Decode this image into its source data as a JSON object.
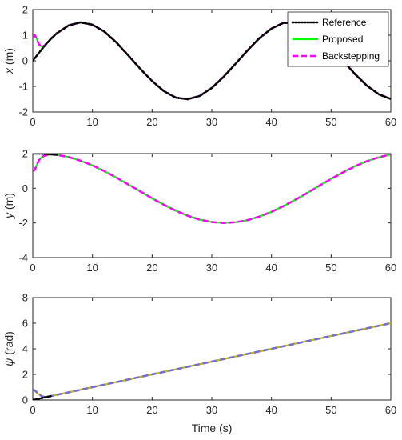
{
  "colors": {
    "reference": "#000000",
    "proposed": "#00ff00",
    "backstepping": "#ff00ff",
    "psi_proposed": "#c8b400",
    "psi_backstepping": "#6e6edc"
  },
  "chart_data": [
    {
      "type": "line",
      "ylabel_var": "x",
      "ylabel_unit": " (m)",
      "ylim": [
        -2,
        2
      ],
      "yticks": [
        "2",
        "1",
        "0",
        "-1",
        "-2"
      ],
      "xlim": [
        0,
        60
      ],
      "xticks": [
        "0",
        "10",
        "20",
        "30",
        "40",
        "50",
        "60"
      ],
      "legend_position": "top-right",
      "legend": [
        "Reference",
        "Proposed",
        "Backstepping"
      ],
      "series": [
        {
          "name": "Reference",
          "style": "dotted",
          "x": [
            0,
            1,
            2,
            3,
            4,
            6,
            8,
            10,
            12,
            14,
            16,
            18,
            20,
            22,
            24,
            26,
            28,
            30,
            32,
            34,
            36,
            38,
            40,
            42,
            44,
            46,
            48,
            50,
            52,
            54,
            56,
            58,
            60
          ],
          "y": [
            0,
            0.3,
            0.59,
            0.85,
            1.07,
            1.38,
            1.5,
            1.41,
            1.14,
            0.72,
            0.21,
            -0.31,
            -0.79,
            -1.19,
            -1.44,
            -1.5,
            -1.37,
            -1.06,
            -0.62,
            -0.11,
            0.41,
            0.89,
            1.26,
            1.48,
            1.49,
            1.31,
            0.97,
            0.52,
            0.0,
            -0.52,
            -0.97,
            -1.31,
            -1.49
          ]
        },
        {
          "name": "Proposed",
          "style": "solid",
          "x": [
            0,
            0.3,
            0.7,
            1.0,
            1.5,
            2,
            3,
            4,
            6,
            8,
            10,
            12,
            14,
            16,
            18,
            20,
            22,
            24,
            26,
            28,
            30,
            32,
            34,
            36,
            38,
            40,
            42,
            44,
            46,
            48,
            50,
            52,
            54,
            56,
            58,
            60
          ],
          "y": [
            0.95,
            1.0,
            0.85,
            0.65,
            0.55,
            0.6,
            0.85,
            1.07,
            1.38,
            1.5,
            1.41,
            1.14,
            0.72,
            0.21,
            -0.31,
            -0.79,
            -1.19,
            -1.44,
            -1.5,
            -1.37,
            -1.06,
            -0.62,
            -0.11,
            0.41,
            0.89,
            1.26,
            1.48,
            1.49,
            1.31,
            0.97,
            0.52,
            0.0,
            -0.52,
            -0.97,
            -1.31,
            -1.49
          ]
        },
        {
          "name": "Backstepping",
          "style": "dashed",
          "x": [
            0,
            0.3,
            0.7,
            1.0,
            1.5,
            2,
            3,
            4,
            6,
            8,
            10,
            12,
            14,
            16,
            18,
            20,
            22,
            24,
            26,
            28,
            30,
            32,
            34,
            36,
            38,
            40,
            42,
            44,
            46,
            48,
            50,
            52,
            54,
            56,
            58,
            60
          ],
          "y": [
            0.95,
            1.0,
            0.85,
            0.65,
            0.55,
            0.6,
            0.85,
            1.07,
            1.38,
            1.5,
            1.41,
            1.14,
            0.72,
            0.21,
            -0.31,
            -0.79,
            -1.19,
            -1.44,
            -1.5,
            -1.37,
            -1.06,
            -0.62,
            -0.11,
            0.41,
            0.89,
            1.26,
            1.48,
            1.49,
            1.31,
            0.97,
            0.52,
            0.0,
            -0.52,
            -0.97,
            -1.31,
            -1.49
          ]
        }
      ]
    },
    {
      "type": "line",
      "ylabel_var": "y",
      "ylabel_unit": " (m)",
      "ylim": [
        -4,
        2
      ],
      "yticks": [
        "2",
        "0",
        "-2",
        "-4"
      ],
      "xlim": [
        0,
        60
      ],
      "xticks": [
        "0",
        "10",
        "20",
        "30",
        "40",
        "50",
        "60"
      ],
      "series": [
        {
          "name": "Reference",
          "style": "dotted",
          "x": [
            0,
            1,
            2,
            3,
            4
          ],
          "y": [
            2.0,
            2.0,
            1.98,
            1.96,
            1.93
          ]
        },
        {
          "name": "Proposed",
          "style": "solid",
          "x": [
            0,
            0.3,
            0.7,
            1.0,
            1.5,
            2,
            3,
            4,
            6,
            8,
            10,
            12,
            14,
            16,
            18,
            20,
            22,
            24,
            26,
            28,
            30,
            32,
            34,
            36,
            38,
            40,
            42,
            44,
            46,
            48,
            50,
            52,
            54,
            56,
            58,
            60
          ],
          "y": [
            1.0,
            1.05,
            1.35,
            1.6,
            1.8,
            1.88,
            1.96,
            1.93,
            1.8,
            1.59,
            1.32,
            0.99,
            0.62,
            0.22,
            -0.18,
            -0.58,
            -0.96,
            -1.3,
            -1.59,
            -1.81,
            -1.95,
            -2.0,
            -1.96,
            -1.84,
            -1.63,
            -1.36,
            -1.03,
            -0.66,
            -0.27,
            0.14,
            0.54,
            0.92,
            1.27,
            1.56,
            1.79,
            1.95
          ]
        },
        {
          "name": "Backstepping",
          "style": "dashed",
          "x": [
            0,
            0.3,
            0.7,
            1.0,
            1.5,
            2,
            3,
            4,
            6,
            8,
            10,
            12,
            14,
            16,
            18,
            20,
            22,
            24,
            26,
            28,
            30,
            32,
            34,
            36,
            38,
            40,
            42,
            44,
            46,
            48,
            50,
            52,
            54,
            56,
            58,
            60
          ],
          "y": [
            1.0,
            1.05,
            1.35,
            1.6,
            1.8,
            1.88,
            1.96,
            1.93,
            1.8,
            1.59,
            1.32,
            0.99,
            0.62,
            0.22,
            -0.18,
            -0.58,
            -0.96,
            -1.3,
            -1.59,
            -1.81,
            -1.95,
            -2.0,
            -1.96,
            -1.84,
            -1.63,
            -1.36,
            -1.03,
            -0.66,
            -0.27,
            0.14,
            0.54,
            0.92,
            1.27,
            1.56,
            1.79,
            1.95
          ]
        }
      ]
    },
    {
      "type": "line",
      "ylabel_var": "ψ",
      "ylabel_unit": " (rad)",
      "ylim": [
        0,
        8
      ],
      "yticks": [
        "8",
        "6",
        "4",
        "2",
        "0"
      ],
      "xlim": [
        0,
        60
      ],
      "xticks": [
        "0",
        "10",
        "20",
        "30",
        "40",
        "50",
        "60"
      ],
      "xlabel": "Time (s)",
      "series": [
        {
          "name": "Reference",
          "style": "dotted",
          "x": [
            0,
            1,
            2,
            3
          ],
          "y": [
            0.0,
            0.1,
            0.2,
            0.3
          ]
        },
        {
          "name": "Proposed",
          "style": "solid",
          "x": [
            0,
            0.3,
            0.7,
            1.0,
            1.5,
            2,
            3,
            10,
            20,
            30,
            40,
            50,
            60
          ],
          "y": [
            0.8,
            0.75,
            0.6,
            0.45,
            0.3,
            0.22,
            0.3,
            1.0,
            2.0,
            3.0,
            4.0,
            5.0,
            6.0
          ]
        },
        {
          "name": "Backstepping",
          "style": "dashed",
          "x": [
            0,
            0.3,
            0.7,
            1.0,
            1.5,
            2,
            3,
            10,
            20,
            30,
            40,
            50,
            60
          ],
          "y": [
            0.8,
            0.75,
            0.6,
            0.45,
            0.3,
            0.22,
            0.3,
            1.0,
            2.0,
            3.0,
            4.0,
            5.0,
            6.0
          ]
        }
      ]
    }
  ]
}
